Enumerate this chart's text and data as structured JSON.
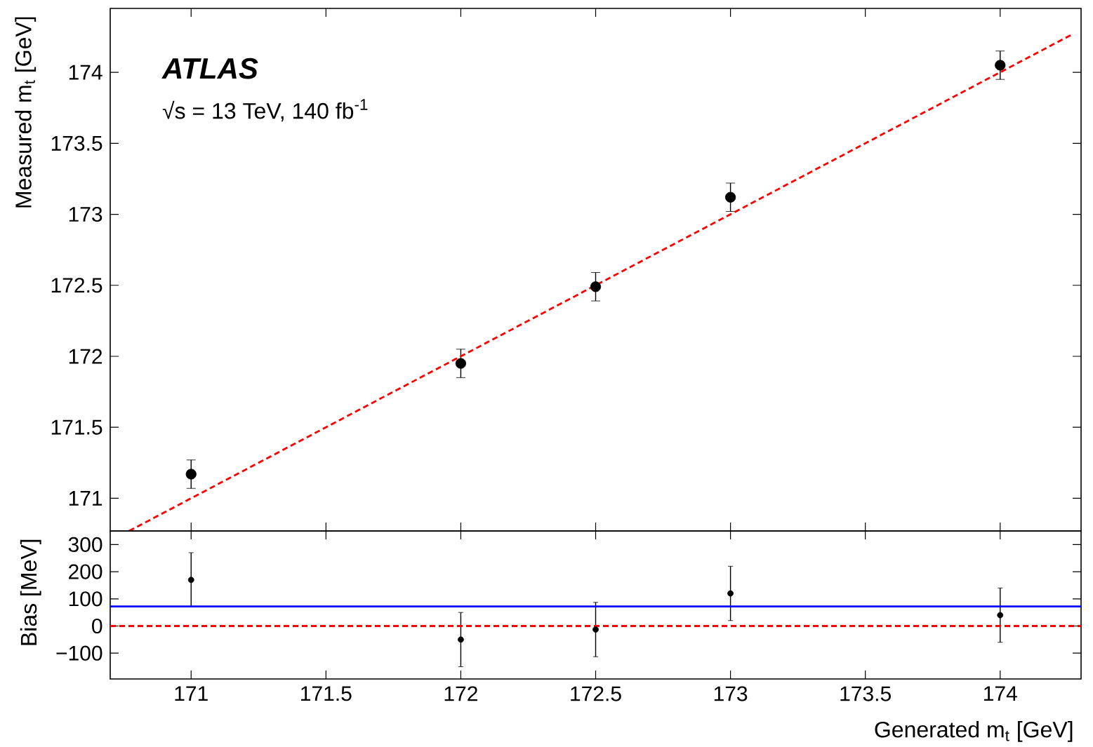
{
  "chart_data": [
    {
      "type": "scatter",
      "ylabel": "Measured m$_{t}$ [GeV]",
      "tick_labels": "y",
      "xlim": [
        170.7,
        174.3
      ],
      "ylim": [
        170.77,
        174.45
      ],
      "xticks": [
        171,
        171.5,
        172,
        172.5,
        173,
        173.5,
        174
      ],
      "yticks": [
        171,
        171.5,
        172,
        172.5,
        173,
        173.5,
        174
      ],
      "annotations": [
        "ATLAS",
        "√s = 13 TeV, 140 fb$^{-1}$"
      ],
      "series": [
        {
          "type": "scatter",
          "color": "#000000",
          "marker": "circle",
          "x": [
            171,
            172,
            172.5,
            173,
            174
          ],
          "values": [
            171.17,
            171.95,
            172.49,
            173.12,
            174.05
          ],
          "errors": [
            0.1,
            0.1,
            0.1,
            0.1,
            0.1
          ]
        },
        {
          "type": "line",
          "color": "#ff0000",
          "line_style": "dashed",
          "marker": "none",
          "x": [
            170.77,
            174.27
          ],
          "values": [
            170.77,
            174.27
          ]
        }
      ]
    },
    {
      "type": "scatter",
      "xlabel": "Generated m$_{t}$ [GeV]",
      "ylabel": "Bias [MeV]",
      "xlim": [
        170.7,
        174.3
      ],
      "ylim": [
        -195,
        350
      ],
      "xticks": [
        171,
        171.5,
        172,
        172.5,
        173,
        173.5,
        174
      ],
      "yticks": [
        {
          "value": -100,
          "label": "−100"
        },
        0,
        100,
        200,
        300
      ],
      "series": [
        {
          "type": "scatter",
          "color": "#000000",
          "marker": "circle",
          "x": [
            171,
            172,
            172.5,
            173,
            174
          ],
          "values": [
            170,
            -50,
            -13,
            120,
            40
          ],
          "errors": [
            100,
            100,
            100,
            100,
            100
          ]
        }
      ],
      "ref_lines": [
        {
          "axis": "y",
          "value": 72,
          "color": "#0000ff",
          "line_style": "solid"
        },
        {
          "axis": "y",
          "value": 0,
          "color": "#ff0000",
          "line_style": "dashed"
        }
      ]
    }
  ]
}
